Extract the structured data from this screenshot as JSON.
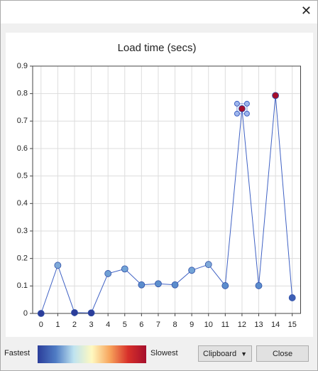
{
  "chart_data": {
    "type": "line",
    "title": "Load time (secs)",
    "x": [
      0,
      1,
      2,
      3,
      4,
      5,
      6,
      7,
      8,
      9,
      10,
      11,
      12,
      13,
      14,
      15
    ],
    "series": [
      {
        "color": "#4062c4",
        "values": [
          0,
          0.175,
          0.003,
          0.002,
          0.145,
          0.162,
          0.104,
          0.108,
          0.104,
          0.157,
          0.178,
          0.101,
          0.745,
          0.101,
          0.793,
          0.057
        ],
        "point_colors": [
          "#2b3d9a",
          "#7fa9d8",
          "#2b3d9a",
          "#2b3d9a",
          "#6f9fd4",
          "#72a3d6",
          "#5b8ccc",
          "#5d8fcd",
          "#5b8ccc",
          "#72a3d6",
          "#7fa9d8",
          "#5b8ccc",
          "#a50f2d",
          "#5b8ccc",
          "#a50f2d",
          "#3d5fb5"
        ]
      }
    ],
    "selected_index": 12,
    "xlim": [
      -0.5,
      15.5
    ],
    "xticks": [
      0,
      1,
      2,
      3,
      4,
      5,
      6,
      7,
      8,
      9,
      10,
      11,
      12,
      13,
      14,
      15
    ],
    "ylim": [
      0,
      0.9
    ],
    "yticks": [
      0,
      0.1,
      0.2,
      0.3,
      0.4,
      0.5,
      0.6,
      0.7,
      0.8,
      0.9
    ],
    "grid": true
  },
  "color_scale": {
    "low_label": "Fastest",
    "high_label": "Slowest",
    "colors": [
      "#2b3d9a",
      "#4f7cc4",
      "#bfe3f0",
      "#fff9c0",
      "#f7a35b",
      "#d7302a",
      "#a50f2d"
    ]
  },
  "buttons": {
    "copy": "Clipboard",
    "close": "Close"
  }
}
